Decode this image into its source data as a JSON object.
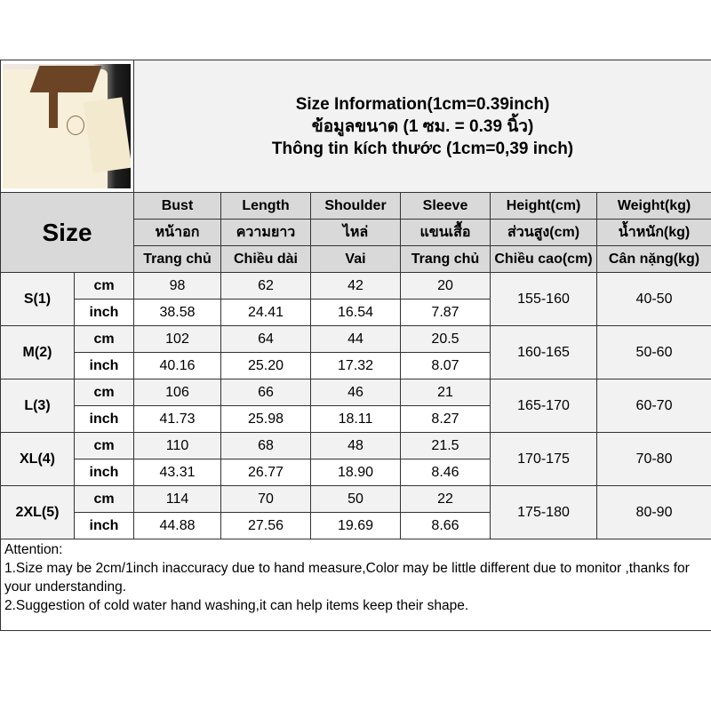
{
  "title": {
    "english": "Size Information(1cm=0.39inch)",
    "thai": "ข้อมูลขนาด (1 ซม. = 0.39 นิ้ว)",
    "vietnamese": "Thông tin kích thước (1cm=0,39 inch)"
  },
  "size_label": "Size",
  "columns": [
    {
      "en": "Bust",
      "th": "หน้าอก",
      "vi": "Trang chủ"
    },
    {
      "en": "Length",
      "th": "ความยาว",
      "vi": "Chiều dài"
    },
    {
      "en": "Shoulder",
      "th": "ไหล่",
      "vi": "Vai"
    },
    {
      "en": "Sleeve",
      "th": "แขนเสื้อ",
      "vi": "Trang chủ"
    },
    {
      "en": "Height(cm)",
      "th": "ส่วนสูง(cm)",
      "vi": "Chiều cao(cm)"
    },
    {
      "en": "Weight(kg)",
      "th": "น้ำหนัก(kg)",
      "vi": "Cân nặng(kg)"
    }
  ],
  "units": {
    "cm": "cm",
    "inch": "inch"
  },
  "rows": [
    {
      "size": "S(1)",
      "cm": [
        "98",
        "62",
        "42",
        "20"
      ],
      "inch": [
        "38.58",
        "24.41",
        "16.54",
        "7.87"
      ],
      "height": "155-160",
      "weight": "40-50"
    },
    {
      "size": "M(2)",
      "cm": [
        "102",
        "64",
        "44",
        "20.5"
      ],
      "inch": [
        "40.16",
        "25.20",
        "17.32",
        "8.07"
      ],
      "height": "160-165",
      "weight": "50-60"
    },
    {
      "size": "L(3)",
      "cm": [
        "106",
        "66",
        "46",
        "21"
      ],
      "inch": [
        "41.73",
        "25.98",
        "18.11",
        "8.27"
      ],
      "height": "165-170",
      "weight": "60-70"
    },
    {
      "size": "XL(4)",
      "cm": [
        "110",
        "68",
        "48",
        "21.5"
      ],
      "inch": [
        "43.31",
        "26.77",
        "18.90",
        "8.46"
      ],
      "height": "170-175",
      "weight": "70-80"
    },
    {
      "size": "2XL(5)",
      "cm": [
        "114",
        "70",
        "50",
        "22"
      ],
      "inch": [
        "44.88",
        "27.56",
        "19.69",
        "8.66"
      ],
      "height": "175-180",
      "weight": "80-90"
    }
  ],
  "attention": {
    "heading": "Attention:",
    "line1": "1.Size may be 2cm/1inch inaccuracy due to hand measure,Color may be little different due to monitor ,thanks for your understanding.",
    "line2": "2.Suggestion of cold water hand washing,it can help items keep their shape."
  },
  "colors": {
    "header": "#d9d9d9",
    "cm_row": "#f2f2f2",
    "inch_row": "#ffffff",
    "border": "#333333"
  }
}
